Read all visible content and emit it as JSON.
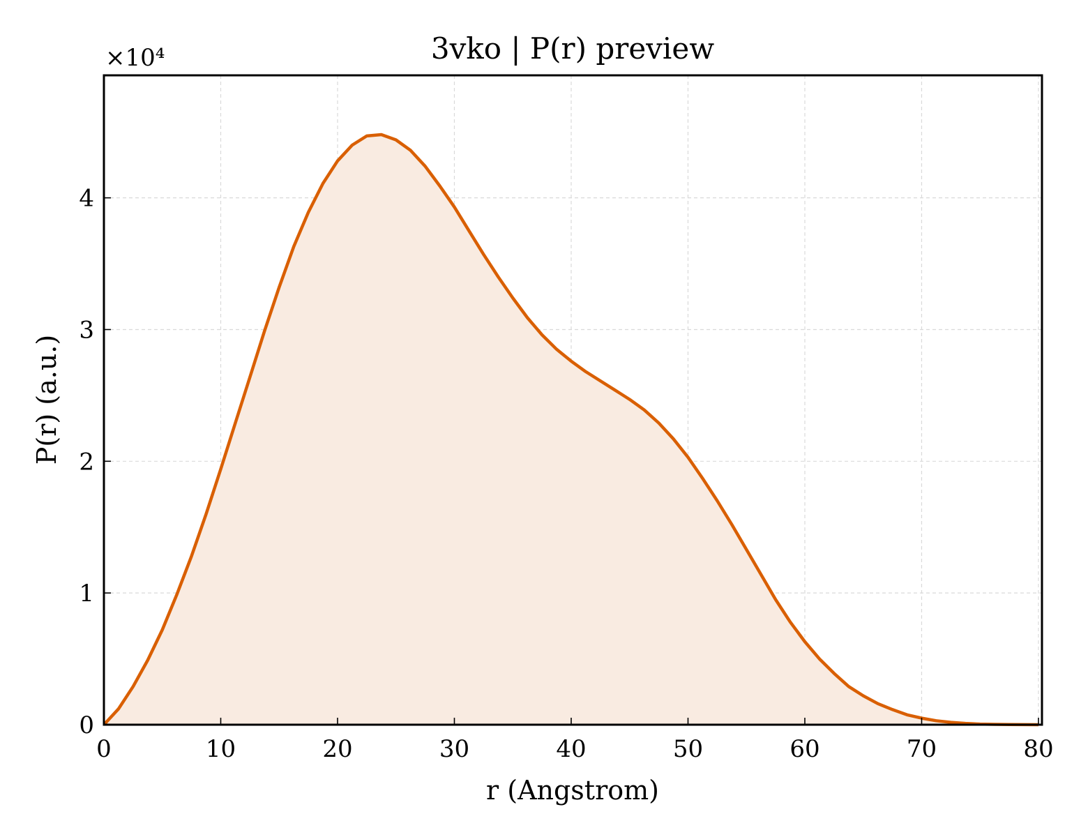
{
  "chart_data": {
    "type": "area",
    "title": "3vko | P(r) preview",
    "xlabel": "r (Angstrom)",
    "ylabel": "P(r) (a.u.)",
    "y_multiplier_label": "×10⁴",
    "xlim": [
      0,
      80.3
    ],
    "ylim": [
      0,
      49300
    ],
    "x_ticks": [
      0,
      10,
      20,
      30,
      40,
      50,
      60,
      70,
      80
    ],
    "y_ticks": [
      0,
      10000,
      20000,
      30000,
      40000
    ],
    "y_tick_labels": [
      "0",
      "1",
      "2",
      "3",
      "4"
    ],
    "grid": true,
    "line_color": "#d95f02",
    "fill_color": "#f9ebe1",
    "series": [
      {
        "x": [
          0,
          1.25,
          2.5,
          3.75,
          5,
          6.25,
          7.5,
          8.75,
          10,
          11.25,
          12.5,
          13.75,
          15,
          16.25,
          17.5,
          18.75,
          20,
          21.25,
          22.5,
          23.75,
          25,
          26.25,
          27.5,
          28.75,
          30,
          31.25,
          32.5,
          33.75,
          35,
          36.25,
          37.5,
          38.75,
          40,
          41.25,
          42.5,
          43.75,
          45,
          46.25,
          47.5,
          48.75,
          50,
          51.25,
          52.5,
          53.75,
          55,
          56.25,
          57.5,
          58.75,
          60,
          61.25,
          62.5,
          63.75,
          65,
          66.25,
          67.5,
          68.75,
          70,
          71.25,
          72.5,
          73.75,
          75,
          76.25,
          77.5,
          78.75,
          80
        ],
        "y": [
          0,
          1200,
          2900,
          4900,
          7200,
          9900,
          12800,
          16000,
          19400,
          22900,
          26400,
          29900,
          33200,
          36300,
          38900,
          41100,
          42800,
          44000,
          44700,
          44800,
          44400,
          43600,
          42400,
          40900,
          39300,
          37500,
          35700,
          34000,
          32400,
          30900,
          29600,
          28500,
          27600,
          26800,
          26100,
          25400,
          24700,
          23900,
          22900,
          21700,
          20300,
          18700,
          17000,
          15200,
          13300,
          11400,
          9500,
          7800,
          6300,
          5000,
          3900,
          2900,
          2200,
          1600,
          1150,
          750,
          500,
          300,
          180,
          100,
          50,
          25,
          10,
          5,
          2
        ]
      }
    ]
  }
}
